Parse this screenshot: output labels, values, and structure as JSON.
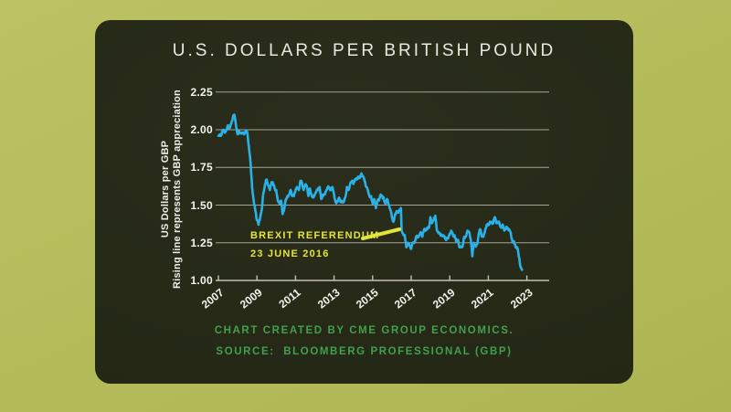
{
  "page": {
    "background_color": "#b6bd5c",
    "panel_color": "#242815"
  },
  "chart": {
    "title": "U.S. DOLLARS PER BRITISH POUND",
    "y_axis_label_line1": "US Dollars per GBP",
    "y_axis_label_line2": "Rising line represents GBP appreciation",
    "annotation_line1": "BREXIT REFERENDUM",
    "annotation_line2": "23 JUNE 2016",
    "footer_line1": "CHART CREATED BY CME GROUP ECONOMICS.",
    "footer_line2": "SOURCE:  BLOOMBERG PROFESSIONAL (GBP)",
    "colors": {
      "line": "#2ab2e8",
      "annotation": "#e3e637",
      "footer_text": "#41a04e",
      "grid": "#a5a598",
      "axis": "#c2c2b4",
      "tick_text": "#f4f4f0"
    }
  },
  "chart_data": {
    "type": "line",
    "title": "U.S. DOLLARS PER BRITISH POUND",
    "xlabel": "",
    "ylabel": "US Dollars per GBP — Rising line represents GBP appreciation",
    "ylim": [
      1.0,
      2.25
    ],
    "xlim": [
      2007,
      2023
    ],
    "y_ticks": [
      "2.25",
      "2.00",
      "1.75",
      "1.50",
      "1.25",
      "1.00"
    ],
    "x_ticks": [
      "2007",
      "2009",
      "2011",
      "2013",
      "2015",
      "2017",
      "2019",
      "2021",
      "2023"
    ],
    "grid": "horizontal",
    "legend": "none",
    "annotations": [
      {
        "text": "BREXIT REFERENDUM 23 JUNE 2016",
        "x": 2016.47,
        "y": 1.48
      }
    ],
    "series": [
      {
        "name": "USD per GBP",
        "points": [
          [
            2007.0,
            1.96
          ],
          [
            2007.08,
            1.96
          ],
          [
            2007.17,
            1.97
          ],
          [
            2007.25,
            2.0
          ],
          [
            2007.33,
            1.98
          ],
          [
            2007.42,
            2.0
          ],
          [
            2007.5,
            2.03
          ],
          [
            2007.58,
            2.01
          ],
          [
            2007.67,
            2.04
          ],
          [
            2007.75,
            2.08
          ],
          [
            2007.83,
            2.1
          ],
          [
            2007.92,
            2.02
          ],
          [
            2008.0,
            1.97
          ],
          [
            2008.08,
            1.99
          ],
          [
            2008.17,
            1.98
          ],
          [
            2008.25,
            1.98
          ],
          [
            2008.33,
            1.97
          ],
          [
            2008.42,
            1.99
          ],
          [
            2008.5,
            1.98
          ],
          [
            2008.58,
            1.89
          ],
          [
            2008.67,
            1.78
          ],
          [
            2008.75,
            1.62
          ],
          [
            2008.83,
            1.53
          ],
          [
            2008.92,
            1.46
          ],
          [
            2009.0,
            1.4
          ],
          [
            2009.08,
            1.37
          ],
          [
            2009.17,
            1.42
          ],
          [
            2009.25,
            1.47
          ],
          [
            2009.33,
            1.58
          ],
          [
            2009.42,
            1.64
          ],
          [
            2009.5,
            1.67
          ],
          [
            2009.58,
            1.63
          ],
          [
            2009.67,
            1.6
          ],
          [
            2009.75,
            1.65
          ],
          [
            2009.83,
            1.65
          ],
          [
            2009.92,
            1.61
          ],
          [
            2010.0,
            1.6
          ],
          [
            2010.08,
            1.53
          ],
          [
            2010.17,
            1.51
          ],
          [
            2010.25,
            1.53
          ],
          [
            2010.33,
            1.44
          ],
          [
            2010.42,
            1.48
          ],
          [
            2010.5,
            1.54
          ],
          [
            2010.58,
            1.56
          ],
          [
            2010.67,
            1.57
          ],
          [
            2010.75,
            1.6
          ],
          [
            2010.83,
            1.56
          ],
          [
            2010.92,
            1.56
          ],
          [
            2011.0,
            1.6
          ],
          [
            2011.08,
            1.62
          ],
          [
            2011.17,
            1.6
          ],
          [
            2011.25,
            1.66
          ],
          [
            2011.33,
            1.65
          ],
          [
            2011.42,
            1.6
          ],
          [
            2011.5,
            1.63
          ],
          [
            2011.58,
            1.63
          ],
          [
            2011.67,
            1.56
          ],
          [
            2011.75,
            1.61
          ],
          [
            2011.83,
            1.57
          ],
          [
            2011.92,
            1.55
          ],
          [
            2012.0,
            1.57
          ],
          [
            2012.08,
            1.59
          ],
          [
            2012.17,
            1.6
          ],
          [
            2012.25,
            1.62
          ],
          [
            2012.33,
            1.54
          ],
          [
            2012.42,
            1.57
          ],
          [
            2012.5,
            1.57
          ],
          [
            2012.58,
            1.59
          ],
          [
            2012.67,
            1.62
          ],
          [
            2012.75,
            1.61
          ],
          [
            2012.83,
            1.6
          ],
          [
            2012.92,
            1.62
          ],
          [
            2013.0,
            1.57
          ],
          [
            2013.08,
            1.52
          ],
          [
            2013.17,
            1.52
          ],
          [
            2013.25,
            1.55
          ],
          [
            2013.33,
            1.52
          ],
          [
            2013.42,
            1.52
          ],
          [
            2013.5,
            1.52
          ],
          [
            2013.58,
            1.55
          ],
          [
            2013.67,
            1.62
          ],
          [
            2013.75,
            1.6
          ],
          [
            2013.83,
            1.64
          ],
          [
            2013.92,
            1.66
          ],
          [
            2014.0,
            1.64
          ],
          [
            2014.08,
            1.67
          ],
          [
            2014.17,
            1.67
          ],
          [
            2014.25,
            1.69
          ],
          [
            2014.33,
            1.68
          ],
          [
            2014.42,
            1.71
          ],
          [
            2014.5,
            1.69
          ],
          [
            2014.58,
            1.66
          ],
          [
            2014.67,
            1.62
          ],
          [
            2014.75,
            1.6
          ],
          [
            2014.83,
            1.56
          ],
          [
            2014.92,
            1.56
          ],
          [
            2015.0,
            1.51
          ],
          [
            2015.08,
            1.54
          ],
          [
            2015.17,
            1.48
          ],
          [
            2015.25,
            1.53
          ],
          [
            2015.33,
            1.53
          ],
          [
            2015.42,
            1.57
          ],
          [
            2015.5,
            1.56
          ],
          [
            2015.58,
            1.54
          ],
          [
            2015.67,
            1.51
          ],
          [
            2015.75,
            1.54
          ],
          [
            2015.83,
            1.5
          ],
          [
            2015.92,
            1.47
          ],
          [
            2016.0,
            1.42
          ],
          [
            2016.08,
            1.39
          ],
          [
            2016.17,
            1.44
          ],
          [
            2016.25,
            1.46
          ],
          [
            2016.33,
            1.45
          ],
          [
            2016.42,
            1.47
          ],
          [
            2016.47,
            1.48
          ],
          [
            2016.5,
            1.33
          ],
          [
            2016.58,
            1.31
          ],
          [
            2016.67,
            1.3
          ],
          [
            2016.75,
            1.22
          ],
          [
            2016.83,
            1.25
          ],
          [
            2016.92,
            1.23
          ],
          [
            2017.0,
            1.21
          ],
          [
            2017.08,
            1.25
          ],
          [
            2017.17,
            1.25
          ],
          [
            2017.25,
            1.29
          ],
          [
            2017.33,
            1.29
          ],
          [
            2017.42,
            1.3
          ],
          [
            2017.5,
            1.32
          ],
          [
            2017.58,
            1.29
          ],
          [
            2017.67,
            1.34
          ],
          [
            2017.75,
            1.33
          ],
          [
            2017.83,
            1.35
          ],
          [
            2017.92,
            1.35
          ],
          [
            2018.0,
            1.42
          ],
          [
            2018.08,
            1.38
          ],
          [
            2018.17,
            1.4
          ],
          [
            2018.25,
            1.43
          ],
          [
            2018.33,
            1.33
          ],
          [
            2018.42,
            1.32
          ],
          [
            2018.5,
            1.31
          ],
          [
            2018.58,
            1.3
          ],
          [
            2018.67,
            1.3
          ],
          [
            2018.75,
            1.28
          ],
          [
            2018.83,
            1.27
          ],
          [
            2018.92,
            1.28
          ],
          [
            2019.0,
            1.31
          ],
          [
            2019.08,
            1.33
          ],
          [
            2019.17,
            1.3
          ],
          [
            2019.25,
            1.3
          ],
          [
            2019.33,
            1.26
          ],
          [
            2019.42,
            1.27
          ],
          [
            2019.5,
            1.22
          ],
          [
            2019.58,
            1.22
          ],
          [
            2019.67,
            1.23
          ],
          [
            2019.75,
            1.29
          ],
          [
            2019.83,
            1.29
          ],
          [
            2019.92,
            1.33
          ],
          [
            2020.0,
            1.32
          ],
          [
            2020.08,
            1.28
          ],
          [
            2020.17,
            1.16
          ],
          [
            2020.25,
            1.25
          ],
          [
            2020.33,
            1.23
          ],
          [
            2020.42,
            1.24
          ],
          [
            2020.5,
            1.31
          ],
          [
            2020.58,
            1.34
          ],
          [
            2020.67,
            1.29
          ],
          [
            2020.75,
            1.29
          ],
          [
            2020.83,
            1.33
          ],
          [
            2020.92,
            1.37
          ],
          [
            2021.0,
            1.37
          ],
          [
            2021.08,
            1.39
          ],
          [
            2021.17,
            1.38
          ],
          [
            2021.25,
            1.38
          ],
          [
            2021.33,
            1.42
          ],
          [
            2021.42,
            1.38
          ],
          [
            2021.5,
            1.39
          ],
          [
            2021.58,
            1.38
          ],
          [
            2021.67,
            1.35
          ],
          [
            2021.75,
            1.37
          ],
          [
            2021.83,
            1.33
          ],
          [
            2021.92,
            1.35
          ],
          [
            2022.0,
            1.34
          ],
          [
            2022.08,
            1.34
          ],
          [
            2022.17,
            1.31
          ],
          [
            2022.25,
            1.26
          ],
          [
            2022.33,
            1.26
          ],
          [
            2022.42,
            1.22
          ],
          [
            2022.5,
            1.22
          ],
          [
            2022.58,
            1.16
          ],
          [
            2022.67,
            1.09
          ],
          [
            2022.75,
            1.07
          ]
        ]
      }
    ]
  }
}
